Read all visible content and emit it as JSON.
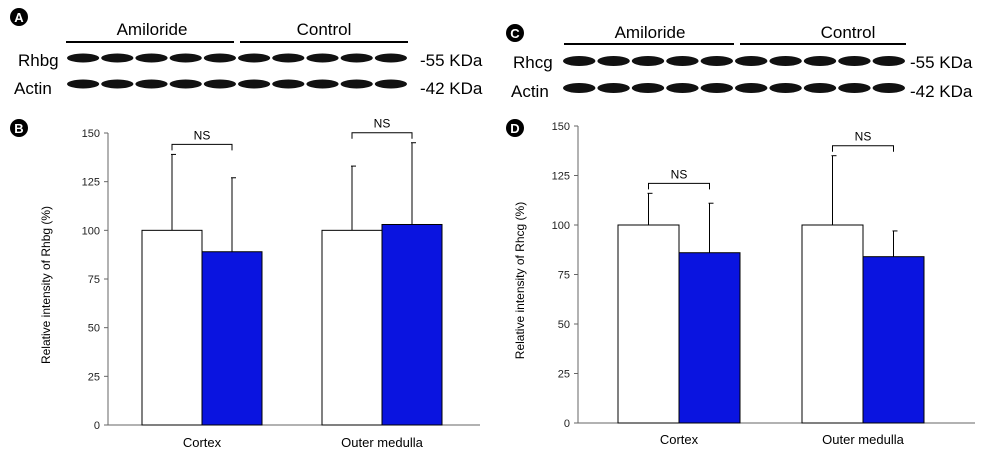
{
  "figure": {
    "panels": [
      {
        "letter": "A",
        "group_labels": [
          "Amiloride",
          "Control"
        ],
        "row_labels": [
          "Rhbg",
          "Actin"
        ],
        "kda_labels": [
          "-55 KDa",
          "-42 KDa"
        ]
      },
      {
        "letter": "C",
        "group_labels": [
          "Amiloride",
          "Control"
        ],
        "row_labels": [
          "Rhcg",
          "Actin"
        ],
        "kda_labels": [
          "-55 KDa",
          "-42 KDa"
        ]
      },
      {
        "letter": "B"
      },
      {
        "letter": "D"
      }
    ]
  },
  "colors": {
    "amiloride": "#ffffff",
    "control": "#0a14e0",
    "band": "#111111"
  },
  "chart_data": [
    {
      "type": "bar",
      "panel": "B",
      "title": "",
      "xlabel": "",
      "ylabel": "Relative intensity of Rhbg (%)",
      "categories": [
        "Cortex",
        "Outer medulla"
      ],
      "ylim": [
        0,
        150
      ],
      "yticks": [
        0,
        25,
        50,
        75,
        100,
        125,
        150
      ],
      "series": [
        {
          "name": "Amiloride",
          "values": [
            100,
            100
          ],
          "errors": [
            39,
            33
          ]
        },
        {
          "name": "Control",
          "values": [
            89,
            103
          ],
          "errors": [
            38,
            42
          ]
        }
      ],
      "annotations": [
        "NS",
        "NS"
      ]
    },
    {
      "type": "bar",
      "panel": "D",
      "title": "",
      "xlabel": "",
      "ylabel": "Relative intensity of Rhcg (%)",
      "categories": [
        "Cortex",
        "Outer medulla"
      ],
      "ylim": [
        0,
        150
      ],
      "yticks": [
        0,
        25,
        50,
        75,
        100,
        125,
        150
      ],
      "series": [
        {
          "name": "Amiloride",
          "values": [
            100,
            100
          ],
          "errors": [
            16,
            35
          ]
        },
        {
          "name": "Control",
          "values": [
            86,
            84
          ],
          "errors": [
            25,
            13
          ]
        }
      ],
      "annotations": [
        "NS",
        "NS"
      ]
    }
  ]
}
